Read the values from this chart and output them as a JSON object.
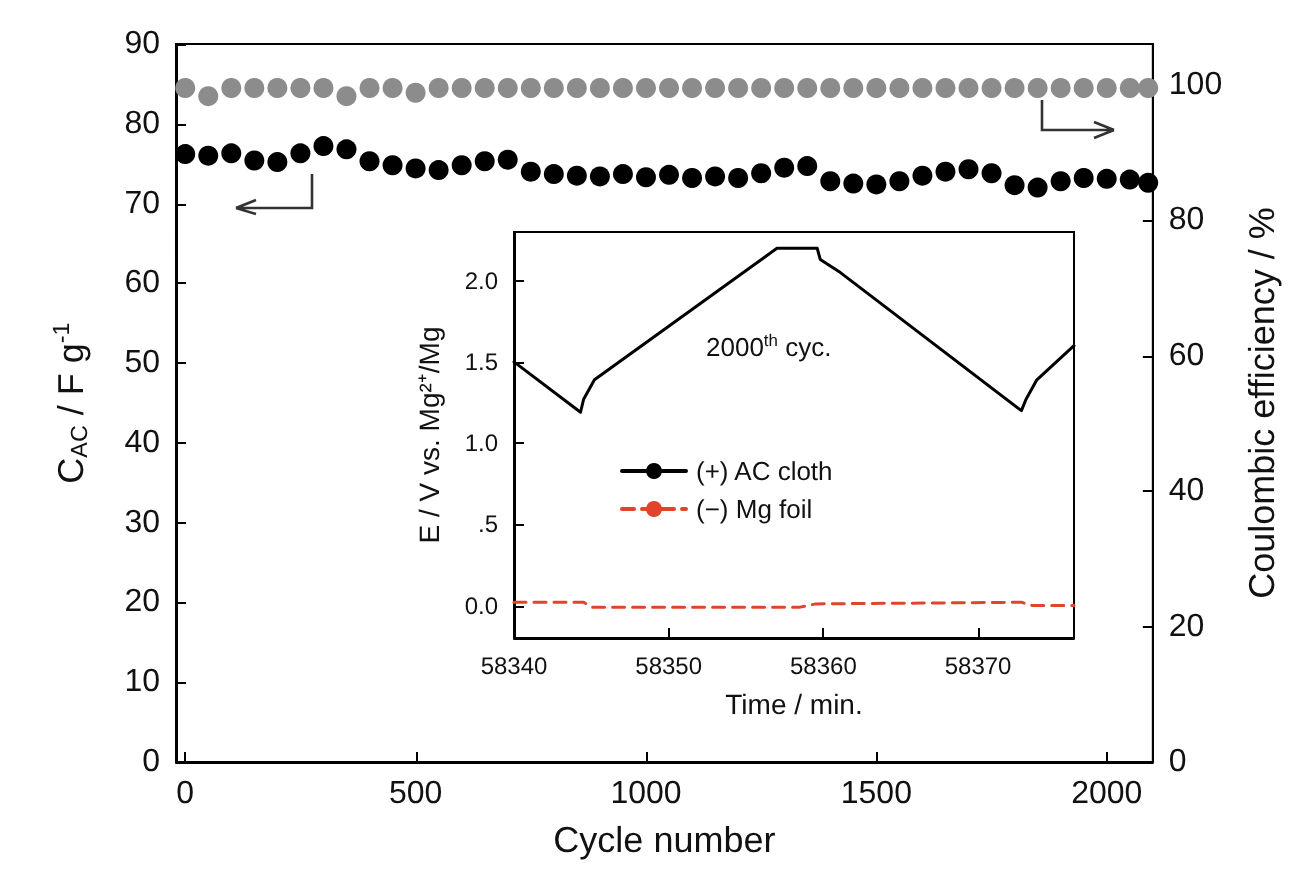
{
  "chart_data": [
    {
      "type": "scatter",
      "xlabel": "Cycle number",
      "ylabel": "C$_{AC}$ / F g$^{-1}$",
      "y2label": "Coulombic efficiency / %",
      "marker": "circle",
      "legend": false,
      "grid": false,
      "x": [
        0,
        50,
        100,
        150,
        200,
        250,
        300,
        350,
        400,
        450,
        500,
        550,
        600,
        650,
        700,
        750,
        800,
        850,
        900,
        950,
        1000,
        1050,
        1100,
        1150,
        1200,
        1250,
        1300,
        1350,
        1400,
        1450,
        1500,
        1550,
        1600,
        1650,
        1700,
        1750,
        1800,
        1850,
        1900,
        1950,
        2000,
        2050,
        2090
      ],
      "series": [
        {
          "color": "#000000",
          "values": [
            76.2,
            76.0,
            76.3,
            75.4,
            75.2,
            76.3,
            77.2,
            76.8,
            75.3,
            74.8,
            74.4,
            74.2,
            74.8,
            75.3,
            75.5,
            74.0,
            73.7,
            73.5,
            73.4,
            73.7,
            73.3,
            73.6,
            73.2,
            73.4,
            73.2,
            73.8,
            74.5,
            74.7,
            72.8,
            72.5,
            72.4,
            72.8,
            73.5,
            74.0,
            74.3,
            73.8,
            72.3,
            72.0,
            72.8,
            73.2,
            73.1,
            73.0,
            72.6
          ]
        },
        {
          "color": "#8c8c8c",
          "axis": "y2",
          "values": [
            99.5,
            98.3,
            99.5,
            99.5,
            99.5,
            99.5,
            99.5,
            98.3,
            99.5,
            99.5,
            98.8,
            99.5,
            99.5,
            99.5,
            99.5,
            99.5,
            99.5,
            99.5,
            99.5,
            99.5,
            99.5,
            99.5,
            99.5,
            99.5,
            99.5,
            99.5,
            99.5,
            99.5,
            99.5,
            99.5,
            99.5,
            99.5,
            99.5,
            99.5,
            99.5,
            99.5,
            99.5,
            99.5,
            99.5,
            99.5,
            99.5,
            99.5,
            99.5
          ]
        }
      ],
      "xlim": [
        -20,
        2100
      ],
      "xticks": [
        0,
        500,
        1000,
        1500,
        2000
      ],
      "ylim": [
        0,
        90
      ],
      "yticks": [
        0,
        10,
        20,
        30,
        40,
        50,
        60,
        70,
        80,
        90
      ],
      "y2lim": [
        0,
        106
      ],
      "y2ticks": [
        0,
        20,
        40,
        60,
        80,
        100
      ]
    },
    {
      "type": "line",
      "xlabel": "Time / min.",
      "ylabel": "E / V vs. Mg²⁺/Mg",
      "legend": "center",
      "grid": false,
      "marker": "none",
      "annotations": [
        "2000$^{th}$ cyc."
      ],
      "series": [
        {
          "name": "(+) AC cloth",
          "color": "#000000",
          "line_style": "solid",
          "x": [
            58340,
            58344.3,
            58344.5,
            58345.2,
            58357.0,
            58359.6,
            58359.8,
            58361.1,
            58372.8,
            58373.1,
            58373.8,
            58376.2
          ],
          "values": [
            1.5,
            1.19,
            1.27,
            1.39,
            2.2,
            2.2,
            2.13,
            2.05,
            1.2,
            1.27,
            1.39,
            1.6
          ]
        },
        {
          "name": "(−) Mg foil",
          "color": "#e0442c",
          "line_style": "dashed",
          "x": [
            58340,
            58344.5,
            58345,
            58358.5,
            58359.5,
            58372.8,
            58373.5,
            58376.2
          ],
          "values": [
            0.02,
            0.02,
            -0.01,
            -0.01,
            0.01,
            0.02,
            0.0,
            0.0
          ]
        }
      ],
      "xlim": [
        58340,
        58376.2
      ],
      "xticks": [
        58340,
        58350,
        58360,
        58370
      ],
      "ylim": [
        -0.2,
        2.3
      ],
      "yticks": [
        {
          "value": 0,
          "label": "0.0"
        },
        {
          "value": 0.5,
          "label": ".5"
        },
        {
          "value": 1,
          "label": "1.0"
        },
        {
          "value": 1.5,
          "label": "1.5"
        },
        {
          "value": 2,
          "label": "2.0"
        }
      ]
    }
  ]
}
